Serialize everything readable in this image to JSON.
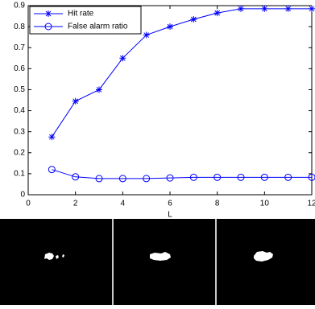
{
  "chart_data": {
    "type": "line",
    "xlabel": "L",
    "x": [
      1,
      2,
      3,
      4,
      5,
      6,
      7,
      8,
      9,
      10,
      11,
      12
    ],
    "series": [
      {
        "name": "Hit rate",
        "color": "#0000ff",
        "marker": "star",
        "values": [
          0.275,
          0.445,
          0.5,
          0.65,
          0.76,
          0.8,
          0.835,
          0.865,
          0.885,
          0.885,
          0.885,
          0.885
        ]
      },
      {
        "name": "False alarm ratio",
        "color": "#0000ff",
        "marker": "circle",
        "values": [
          0.12,
          0.085,
          0.077,
          0.077,
          0.077,
          0.08,
          0.083,
          0.083,
          0.083,
          0.083,
          0.083,
          0.083
        ]
      }
    ],
    "xlim": [
      0,
      12
    ],
    "xticks": [
      0,
      2,
      4,
      6,
      8,
      10,
      12
    ],
    "ylim": [
      0,
      0.9
    ],
    "yticks": [
      0,
      0.1,
      0.2,
      0.3,
      0.4,
      0.5,
      0.6,
      0.7,
      0.8,
      0.9
    ],
    "grid": false,
    "legend": "upper left"
  }
}
